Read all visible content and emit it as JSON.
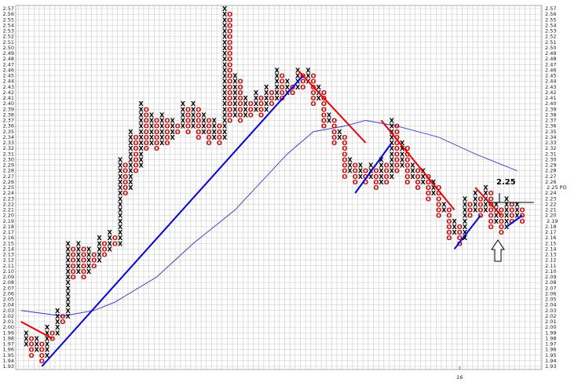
{
  "chart_data": {
    "type": "pnf",
    "colors": {
      "X": "#000000",
      "O": "#cc0000"
    },
    "columns": [
      {
        "kind": "X",
        "low": 1.97,
        "high": 1.99
      },
      {
        "kind": "O",
        "low": 1.95,
        "high": 1.98
      },
      {
        "kind": "X",
        "low": 1.96,
        "high": 1.98
      },
      {
        "kind": "O",
        "low": 1.94,
        "high": 1.97
      },
      {
        "kind": "X",
        "low": 1.95,
        "high": 2.0
      },
      {
        "kind": "O",
        "low": 1.98,
        "high": 1.99
      },
      {
        "kind": "X",
        "low": 1.99,
        "high": 2.03
      },
      {
        "kind": "O",
        "low": 2.01,
        "high": 2.02
      },
      {
        "kind": "X",
        "low": 2.02,
        "high": 2.15
      },
      {
        "kind": "O",
        "low": 2.09,
        "high": 2.14
      },
      {
        "kind": "X",
        "low": 2.1,
        "high": 2.15
      },
      {
        "kind": "O",
        "low": 2.09,
        "high": 2.14
      },
      {
        "kind": "X",
        "low": 2.1,
        "high": 2.14
      },
      {
        "kind": "O",
        "low": 2.11,
        "high": 2.13
      },
      {
        "kind": "X",
        "low": 2.12,
        "high": 2.16
      },
      {
        "kind": "O",
        "low": 2.13,
        "high": 2.15
      },
      {
        "kind": "X",
        "low": 2.14,
        "high": 2.17
      },
      {
        "kind": "O",
        "low": 2.15,
        "high": 2.16
      },
      {
        "kind": "X",
        "low": 2.15,
        "high": 2.3
      },
      {
        "kind": "O",
        "low": 2.24,
        "high": 2.29
      },
      {
        "kind": "X",
        "low": 2.25,
        "high": 2.35
      },
      {
        "kind": "O",
        "low": 2.28,
        "high": 2.34
      },
      {
        "kind": "X",
        "low": 2.29,
        "high": 2.4
      },
      {
        "kind": "O",
        "low": 2.32,
        "high": 2.39
      },
      {
        "kind": "X",
        "low": 2.33,
        "high": 2.38
      },
      {
        "kind": "O",
        "low": 2.32,
        "high": 2.37
      },
      {
        "kind": "X",
        "low": 2.33,
        "high": 2.38
      },
      {
        "kind": "O",
        "low": 2.33,
        "high": 2.37
      },
      {
        "kind": "X",
        "low": 2.34,
        "high": 2.37
      },
      {
        "kind": "O",
        "low": 2.35,
        "high": 2.36
      },
      {
        "kind": "X",
        "low": 2.36,
        "high": 2.4
      },
      {
        "kind": "O",
        "low": 2.35,
        "high": 2.39
      },
      {
        "kind": "X",
        "low": 2.36,
        "high": 2.4
      },
      {
        "kind": "O",
        "low": 2.34,
        "high": 2.39
      },
      {
        "kind": "X",
        "low": 2.35,
        "high": 2.38
      },
      {
        "kind": "O",
        "low": 2.33,
        "high": 2.37
      },
      {
        "kind": "X",
        "low": 2.34,
        "high": 2.37
      },
      {
        "kind": "O",
        "low": 2.33,
        "high": 2.36
      },
      {
        "kind": "X",
        "low": 2.34,
        "high": 2.57
      },
      {
        "kind": "O",
        "low": 2.37,
        "high": 2.56
      },
      {
        "kind": "X",
        "low": 2.38,
        "high": 2.45
      },
      {
        "kind": "O",
        "low": 2.37,
        "high": 2.44
      },
      {
        "kind": "X",
        "low": 2.38,
        "high": 2.41
      },
      {
        "kind": "O",
        "low": 2.38,
        "high": 2.4
      },
      {
        "kind": "X",
        "low": 2.39,
        "high": 2.42
      },
      {
        "kind": "O",
        "low": 2.38,
        "high": 2.41
      },
      {
        "kind": "X",
        "low": 2.39,
        "high": 2.43
      },
      {
        "kind": "O",
        "low": 2.4,
        "high": 2.42
      },
      {
        "kind": "X",
        "low": 2.41,
        "high": 2.46
      },
      {
        "kind": "O",
        "low": 2.41,
        "high": 2.45
      },
      {
        "kind": "X",
        "low": 2.42,
        "high": 2.44
      },
      {
        "kind": "O",
        "low": 2.42,
        "high": 2.43
      },
      {
        "kind": "X",
        "low": 2.43,
        "high": 2.46
      },
      {
        "kind": "O",
        "low": 2.43,
        "high": 2.45
      },
      {
        "kind": "X",
        "low": 2.44,
        "high": 2.46
      },
      {
        "kind": "O",
        "low": 2.4,
        "high": 2.45
      },
      {
        "kind": "X",
        "low": 2.41,
        "high": 2.43
      },
      {
        "kind": "O",
        "low": 2.36,
        "high": 2.42
      },
      {
        "kind": "X",
        "low": 2.37,
        "high": 2.38
      },
      {
        "kind": "O",
        "low": 2.33,
        "high": 2.37
      },
      {
        "kind": "X",
        "low": 2.34,
        "high": 2.35
      },
      {
        "kind": "O",
        "low": 2.27,
        "high": 2.34
      },
      {
        "kind": "X",
        "low": 2.28,
        "high": 2.3
      },
      {
        "kind": "O",
        "low": 2.26,
        "high": 2.29
      },
      {
        "kind": "X",
        "low": 2.27,
        "high": 2.29
      },
      {
        "kind": "O",
        "low": 2.26,
        "high": 2.28
      },
      {
        "kind": "X",
        "low": 2.27,
        "high": 2.29
      },
      {
        "kind": "O",
        "low": 2.25,
        "high": 2.28
      },
      {
        "kind": "X",
        "low": 2.26,
        "high": 2.3
      },
      {
        "kind": "O",
        "low": 2.26,
        "high": 2.29
      },
      {
        "kind": "X",
        "low": 2.27,
        "high": 2.37
      },
      {
        "kind": "O",
        "low": 2.28,
        "high": 2.36
      },
      {
        "kind": "X",
        "low": 2.29,
        "high": 2.33
      },
      {
        "kind": "O",
        "low": 2.26,
        "high": 2.32
      },
      {
        "kind": "X",
        "low": 2.27,
        "high": 2.29
      },
      {
        "kind": "O",
        "low": 2.25,
        "high": 2.28
      },
      {
        "kind": "X",
        "low": 2.26,
        "high": 2.28
      },
      {
        "kind": "O",
        "low": 2.23,
        "high": 2.27
      },
      {
        "kind": "X",
        "low": 2.24,
        "high": 2.26
      },
      {
        "kind": "O",
        "low": 2.2,
        "high": 2.25
      },
      {
        "kind": "X",
        "low": 2.21,
        "high": 2.22
      },
      {
        "kind": "O",
        "low": 2.16,
        "high": 2.21
      },
      {
        "kind": "X",
        "low": 2.17,
        "high": 2.19
      },
      {
        "kind": "O",
        "low": 2.15,
        "high": 2.18
      },
      {
        "kind": "X",
        "low": 2.16,
        "high": 2.23
      },
      {
        "kind": "O",
        "low": 2.2,
        "high": 2.22
      },
      {
        "kind": "X",
        "low": 2.21,
        "high": 2.24
      },
      {
        "kind": "O",
        "low": 2.2,
        "high": 2.23
      },
      {
        "kind": "X",
        "low": 2.21,
        "high": 2.25
      },
      {
        "kind": "O",
        "low": 2.18,
        "high": 2.24
      },
      {
        "kind": "X",
        "low": 2.19,
        "high": 2.22
      },
      {
        "kind": "O",
        "low": 2.17,
        "high": 2.21
      },
      {
        "kind": "X",
        "low": 2.18,
        "high": 2.23
      },
      {
        "kind": "O",
        "low": 2.19,
        "high": 2.22
      },
      {
        "kind": "X",
        "low": 2.2,
        "high": 2.22
      },
      {
        "kind": "O",
        "low": 2.19,
        "high": 2.21
      }
    ],
    "moving_average": {
      "color": "#3333cc",
      "x": [
        0,
        8,
        14,
        18,
        26,
        33,
        41,
        47,
        51,
        56,
        62,
        66,
        72,
        80,
        87,
        95
      ],
      "values": [
        2.03,
        2.02,
        2.03,
        2.045,
        2.09,
        2.15,
        2.21,
        2.27,
        2.31,
        2.35,
        2.36,
        2.37,
        2.36,
        2.34,
        2.31,
        2.28
      ]
    },
    "trendlines": [
      {
        "color": "#0000ee",
        "x": [
          4,
          54
        ],
        "values": [
          1.93,
          2.45
        ]
      },
      {
        "color": "#ee0000",
        "x": [
          0,
          6
        ],
        "values": [
          2.01,
          1.98
        ]
      },
      {
        "color": "#ee0000",
        "x": [
          53,
          66
        ],
        "values": [
          2.46,
          2.33
        ]
      },
      {
        "color": "#0000ee",
        "x": [
          64,
          71
        ],
        "values": [
          2.24,
          2.33
        ]
      },
      {
        "color": "#ee0000",
        "x": [
          69,
          83
        ],
        "values": [
          2.37,
          2.21
        ]
      },
      {
        "color": "#0000ee",
        "x": [
          83,
          88
        ],
        "values": [
          2.14,
          2.2
        ]
      },
      {
        "color": "#ee0000",
        "x": [
          87,
          92
        ],
        "values": [
          2.25,
          2.2
        ]
      },
      {
        "color": "#0000ee",
        "x": [
          93,
          96
        ],
        "values": [
          2.18,
          2.2
        ]
      }
    ],
    "price_objective": {
      "value": 2.25,
      "label": "2.25",
      "axis_label": "2.25 PO",
      "color": "#22aa22"
    },
    "last_price": {
      "value": 2.19,
      "label": "2.19",
      "color": "#dd2222"
    },
    "xlim": [
      0,
      97
    ],
    "xticks": [
      {
        "value": 84,
        "label": "16"
      }
    ],
    "ylim": [
      1.93,
      2.57
    ],
    "yticks": [
      2.57,
      2.56,
      2.55,
      2.54,
      2.53,
      2.52,
      2.51,
      {
        "value": 2.5,
        "label": "2.50"
      },
      2.49,
      2.48,
      2.47,
      2.46,
      2.45,
      2.44,
      2.43,
      2.42,
      2.41,
      {
        "value": 2.4,
        "label": "2.40"
      },
      2.39,
      2.38,
      2.37,
      2.36,
      2.35,
      2.34,
      2.33,
      2.32,
      2.31,
      {
        "value": 2.3,
        "label": "2.30"
      },
      2.29,
      2.28,
      2.27,
      2.26,
      2.25,
      2.24,
      2.23,
      2.22,
      2.21,
      {
        "value": 2.2,
        "label": "2.20"
      },
      2.19,
      2.18,
      2.17,
      2.16,
      2.15,
      2.14,
      2.13,
      2.12,
      2.11,
      {
        "value": 2.1,
        "label": "2.10"
      },
      2.09,
      2.08,
      2.07,
      2.06,
      2.05,
      2.04,
      2.03,
      2.02,
      2.01,
      {
        "value": 2.0,
        "label": "2.00"
      },
      1.99,
      1.98,
      1.97,
      1.96,
      1.95,
      1.94,
      1.93
    ],
    "grid": true
  }
}
